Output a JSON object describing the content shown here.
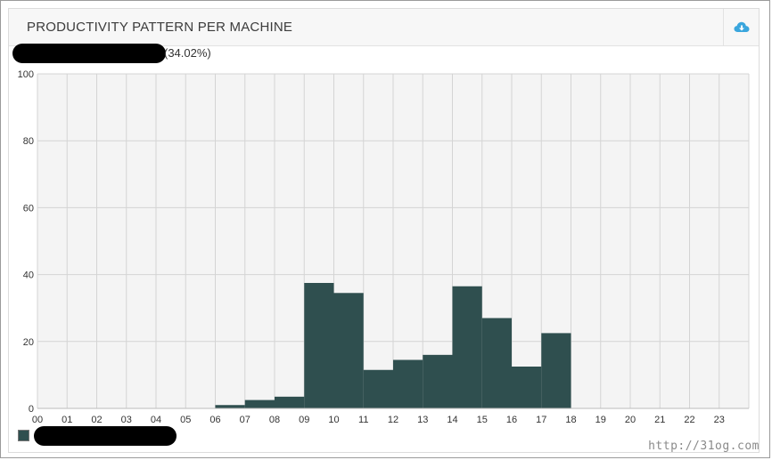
{
  "panel": {
    "title": "PRODUCTIVITY PATTERN PER MACHINE",
    "download_icon": "cloud-download-icon"
  },
  "subtitle": {
    "percent_text": "(34.02%)"
  },
  "watermark": "http://31og.com",
  "colors": {
    "bar": "#2f4f4f",
    "grid": "#d4d4d4",
    "plot_bg": "#f4f4f4",
    "icon": "#3aa6dd"
  },
  "chart_data": {
    "type": "bar",
    "categories": [
      "00",
      "01",
      "02",
      "03",
      "04",
      "05",
      "06",
      "07",
      "08",
      "09",
      "10",
      "11",
      "12",
      "13",
      "14",
      "15",
      "16",
      "17",
      "18",
      "19",
      "20",
      "21",
      "22",
      "23"
    ],
    "series": [
      {
        "values": [
          0,
          0,
          0,
          0,
          0,
          0,
          1,
          2.5,
          3.5,
          37.5,
          34.5,
          11.5,
          14.5,
          16,
          36.5,
          27,
          12.5,
          22.5,
          0,
          0,
          0,
          0,
          0,
          0
        ]
      }
    ],
    "y_ticks": [
      "0",
      "20",
      "40",
      "60",
      "80",
      "100"
    ],
    "ylim": [
      0,
      100
    ],
    "grid": true,
    "legend_position": "bottom-left"
  }
}
